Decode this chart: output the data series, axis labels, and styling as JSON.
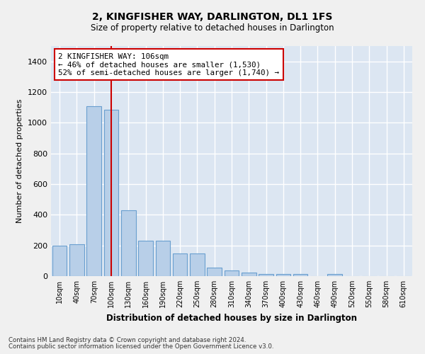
{
  "title": "2, KINGFISHER WAY, DARLINGTON, DL1 1FS",
  "subtitle": "Size of property relative to detached houses in Darlington",
  "xlabel": "Distribution of detached houses by size in Darlington",
  "ylabel": "Number of detached properties",
  "categories": [
    "10sqm",
    "40sqm",
    "70sqm",
    "100sqm",
    "130sqm",
    "160sqm",
    "190sqm",
    "220sqm",
    "250sqm",
    "280sqm",
    "310sqm",
    "340sqm",
    "370sqm",
    "400sqm",
    "430sqm",
    "460sqm",
    "490sqm",
    "520sqm",
    "550sqm",
    "580sqm",
    "610sqm"
  ],
  "values": [
    200,
    210,
    1110,
    1085,
    430,
    230,
    230,
    148,
    148,
    57,
    38,
    25,
    12,
    15,
    15,
    0,
    12,
    0,
    0,
    0,
    0
  ],
  "bar_color": "#b8cfe8",
  "bar_edge_color": "#6a9fcf",
  "vline_color": "#cc0000",
  "vline_x_index": 3,
  "annotation_line0": "2 KINGFISHER WAY: 106sqm",
  "annotation_line1": "← 46% of detached houses are smaller (1,530)",
  "annotation_line2": "52% of semi-detached houses are larger (1,740) →",
  "annotation_box_color": "#ffffff",
  "annotation_box_edge": "#cc0000",
  "ylim": [
    0,
    1500
  ],
  "yticks": [
    0,
    200,
    400,
    600,
    800,
    1000,
    1200,
    1400
  ],
  "bg_color": "#dce6f2",
  "grid_color": "#ffffff",
  "fig_bg_color": "#f0f0f0",
  "footer_line1": "Contains HM Land Registry data © Crown copyright and database right 2024.",
  "footer_line2": "Contains public sector information licensed under the Open Government Licence v3.0."
}
